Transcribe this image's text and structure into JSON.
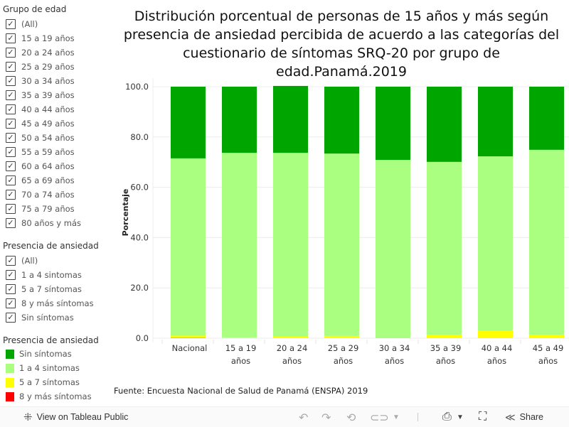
{
  "filters": {
    "age_group": {
      "title": "Grupo de edad",
      "items": [
        "(All)",
        "15 a 19 años",
        "20 a 24 años",
        "25 a 29 años",
        "30 a 34 años",
        "35 a 39 años",
        "40 a 44 años",
        "45 a 49 años",
        "50 a 54 años",
        "55 a 59 años",
        "60 a 64 años",
        "65 a 69 años",
        "70 a 74 años",
        "75 a 79 años",
        "80 años y más"
      ]
    },
    "anxiety": {
      "title": "Presencia  de ansiedad",
      "items": [
        "(All)",
        "1 a 4 sintomas",
        "5 a 7 síntomas",
        "8 y más síntomas",
        "Sin síntomas"
      ]
    }
  },
  "legend": {
    "title": "Presencia  de ansiedad",
    "items": [
      {
        "label": "Sin síntomas",
        "color": "#00a500"
      },
      {
        "label": "1 a 4 sintomas",
        "color": "#aaff80"
      },
      {
        "label": "5 a 7 síntomas",
        "color": "#ffff00"
      },
      {
        "label": "8 y más síntomas",
        "color": "#ff0000"
      }
    ]
  },
  "title": "Distribución porcentual de personas de 15 años y más según presencia de ansiedad percibida de acuerdo a las categorías del cuestionario de síntomas SRQ-20 por grupo de edad.Panamá.2019",
  "source": "Fuente: Encuesta Nacional de Salud de Panamá (ENSPA) 2019",
  "footer": {
    "view_label": "View on Tableau Public",
    "share_label": "Share"
  },
  "chart_data": {
    "type": "bar",
    "stacked": true,
    "title": "Distribución porcentual de personas de 15 años y más según presencia de ansiedad percibida de acuerdo a las categorías del cuestionario de síntomas SRQ-20 por grupo de edad.Panamá.2019",
    "xlabel": "",
    "ylabel": "Porcentaje",
    "ylim": [
      0,
      100
    ],
    "yticks": [
      "0.0",
      "20.0",
      "40.0",
      "60.0",
      "80.0",
      "100.0"
    ],
    "grid": true,
    "categories": [
      [
        "Nacional"
      ],
      [
        "15 a 19",
        "años"
      ],
      [
        "20 a 24",
        "años"
      ],
      [
        "25 a 29",
        "años"
      ],
      [
        "30 a 34",
        "años"
      ],
      [
        "35 a 39",
        "años"
      ],
      [
        "40 a 44",
        "años"
      ],
      [
        "45 a 49",
        "años"
      ]
    ],
    "series": [
      {
        "name": "8 y más síntomas",
        "color": "#ff0000",
        "values": [
          0.1,
          0.0,
          0.0,
          0.0,
          0.0,
          0.0,
          0.0,
          0.0
        ]
      },
      {
        "name": "5 a 7 síntomas",
        "color": "#ffff00",
        "values": [
          0.9,
          0.3,
          0.6,
          0.9,
          0.0,
          1.4,
          3.1,
          1.4
        ]
      },
      {
        "name": "1 a 4 sintomas",
        "color": "#aaff80",
        "values": [
          70.5,
          73.4,
          73.1,
          72.5,
          70.9,
          68.7,
          69.2,
          73.5
        ]
      },
      {
        "name": "Sin síntomas",
        "color": "#00a500",
        "values": [
          28.5,
          26.3,
          26.6,
          26.6,
          29.1,
          29.9,
          27.7,
          25.1
        ]
      }
    ]
  }
}
